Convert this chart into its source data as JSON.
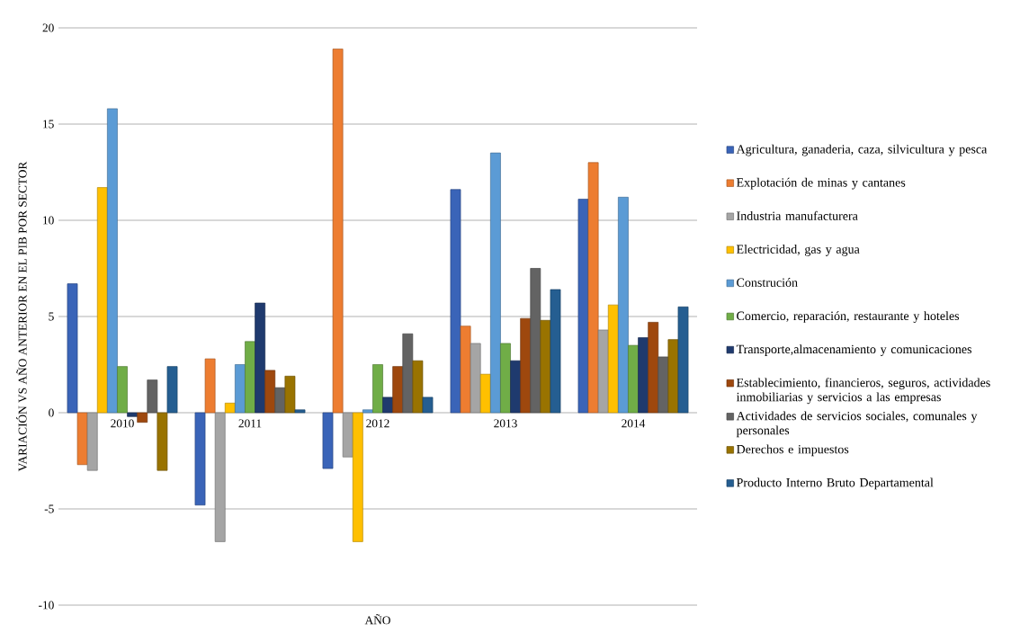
{
  "chart_data": {
    "type": "bar",
    "xlabel": "AÑO",
    "ylabel": "VARIACIÓN VS AÑO ANTERIOR EN EL PIB POR SECTOR",
    "categories": [
      "2010",
      "2011",
      "2012",
      "2013",
      "2014"
    ],
    "ylim": [
      -10,
      20
    ],
    "yticks": [
      -10,
      -5,
      0,
      5,
      10,
      15,
      20
    ],
    "grid": "y",
    "legend": "right",
    "series": [
      {
        "name": "Agricultura, ganaderia, caza, silvicultura y pesca",
        "color": "#3a64b8",
        "values": [
          6.7,
          -4.8,
          -2.9,
          11.6,
          11.1
        ]
      },
      {
        "name": "Explotación de minas y cantanes",
        "color": "#ed7d31",
        "values": [
          -2.7,
          2.8,
          18.9,
          4.5,
          13.0
        ]
      },
      {
        "name": "Industria manufacturera",
        "color": "#a5a5a5",
        "values": [
          -3.0,
          -6.7,
          -2.3,
          3.6,
          4.3
        ]
      },
      {
        "name": "Electricidad, gas y agua",
        "color": "#ffc000",
        "values": [
          11.7,
          0.5,
          -6.7,
          2.0,
          5.6
        ]
      },
      {
        "name": "Construción",
        "color": "#5b9bd5",
        "values": [
          15.8,
          2.5,
          0.15,
          13.5,
          11.2
        ]
      },
      {
        "name": "Comercio, reparación, restaurante y hoteles",
        "color": "#70ad47",
        "values": [
          2.4,
          3.7,
          2.5,
          3.6,
          3.5
        ]
      },
      {
        "name": "Transporte,almacenamiento y comunicaciones",
        "color": "#1f3a6e",
        "values": [
          -0.2,
          5.7,
          0.8,
          2.7,
          3.9
        ]
      },
      {
        "name": "Establecimiento, financieros, seguros, actividades inmobiliarias y servicios a las empresas",
        "color": "#9e480e",
        "values": [
          -0.5,
          2.2,
          2.4,
          4.9,
          4.7
        ]
      },
      {
        "name": "Actividades de servicios sociales, comunales y personales",
        "color": "#636363",
        "values": [
          1.7,
          1.3,
          4.1,
          7.5,
          2.9
        ]
      },
      {
        "name": "Derechos e impuestos",
        "color": "#997300",
        "values": [
          -3.0,
          1.9,
          2.7,
          4.8,
          3.8
        ]
      },
      {
        "name": "Producto Interno Bruto Departamental",
        "color": "#255e91",
        "values": [
          2.4,
          0.15,
          0.8,
          6.4,
          5.5
        ]
      }
    ]
  }
}
